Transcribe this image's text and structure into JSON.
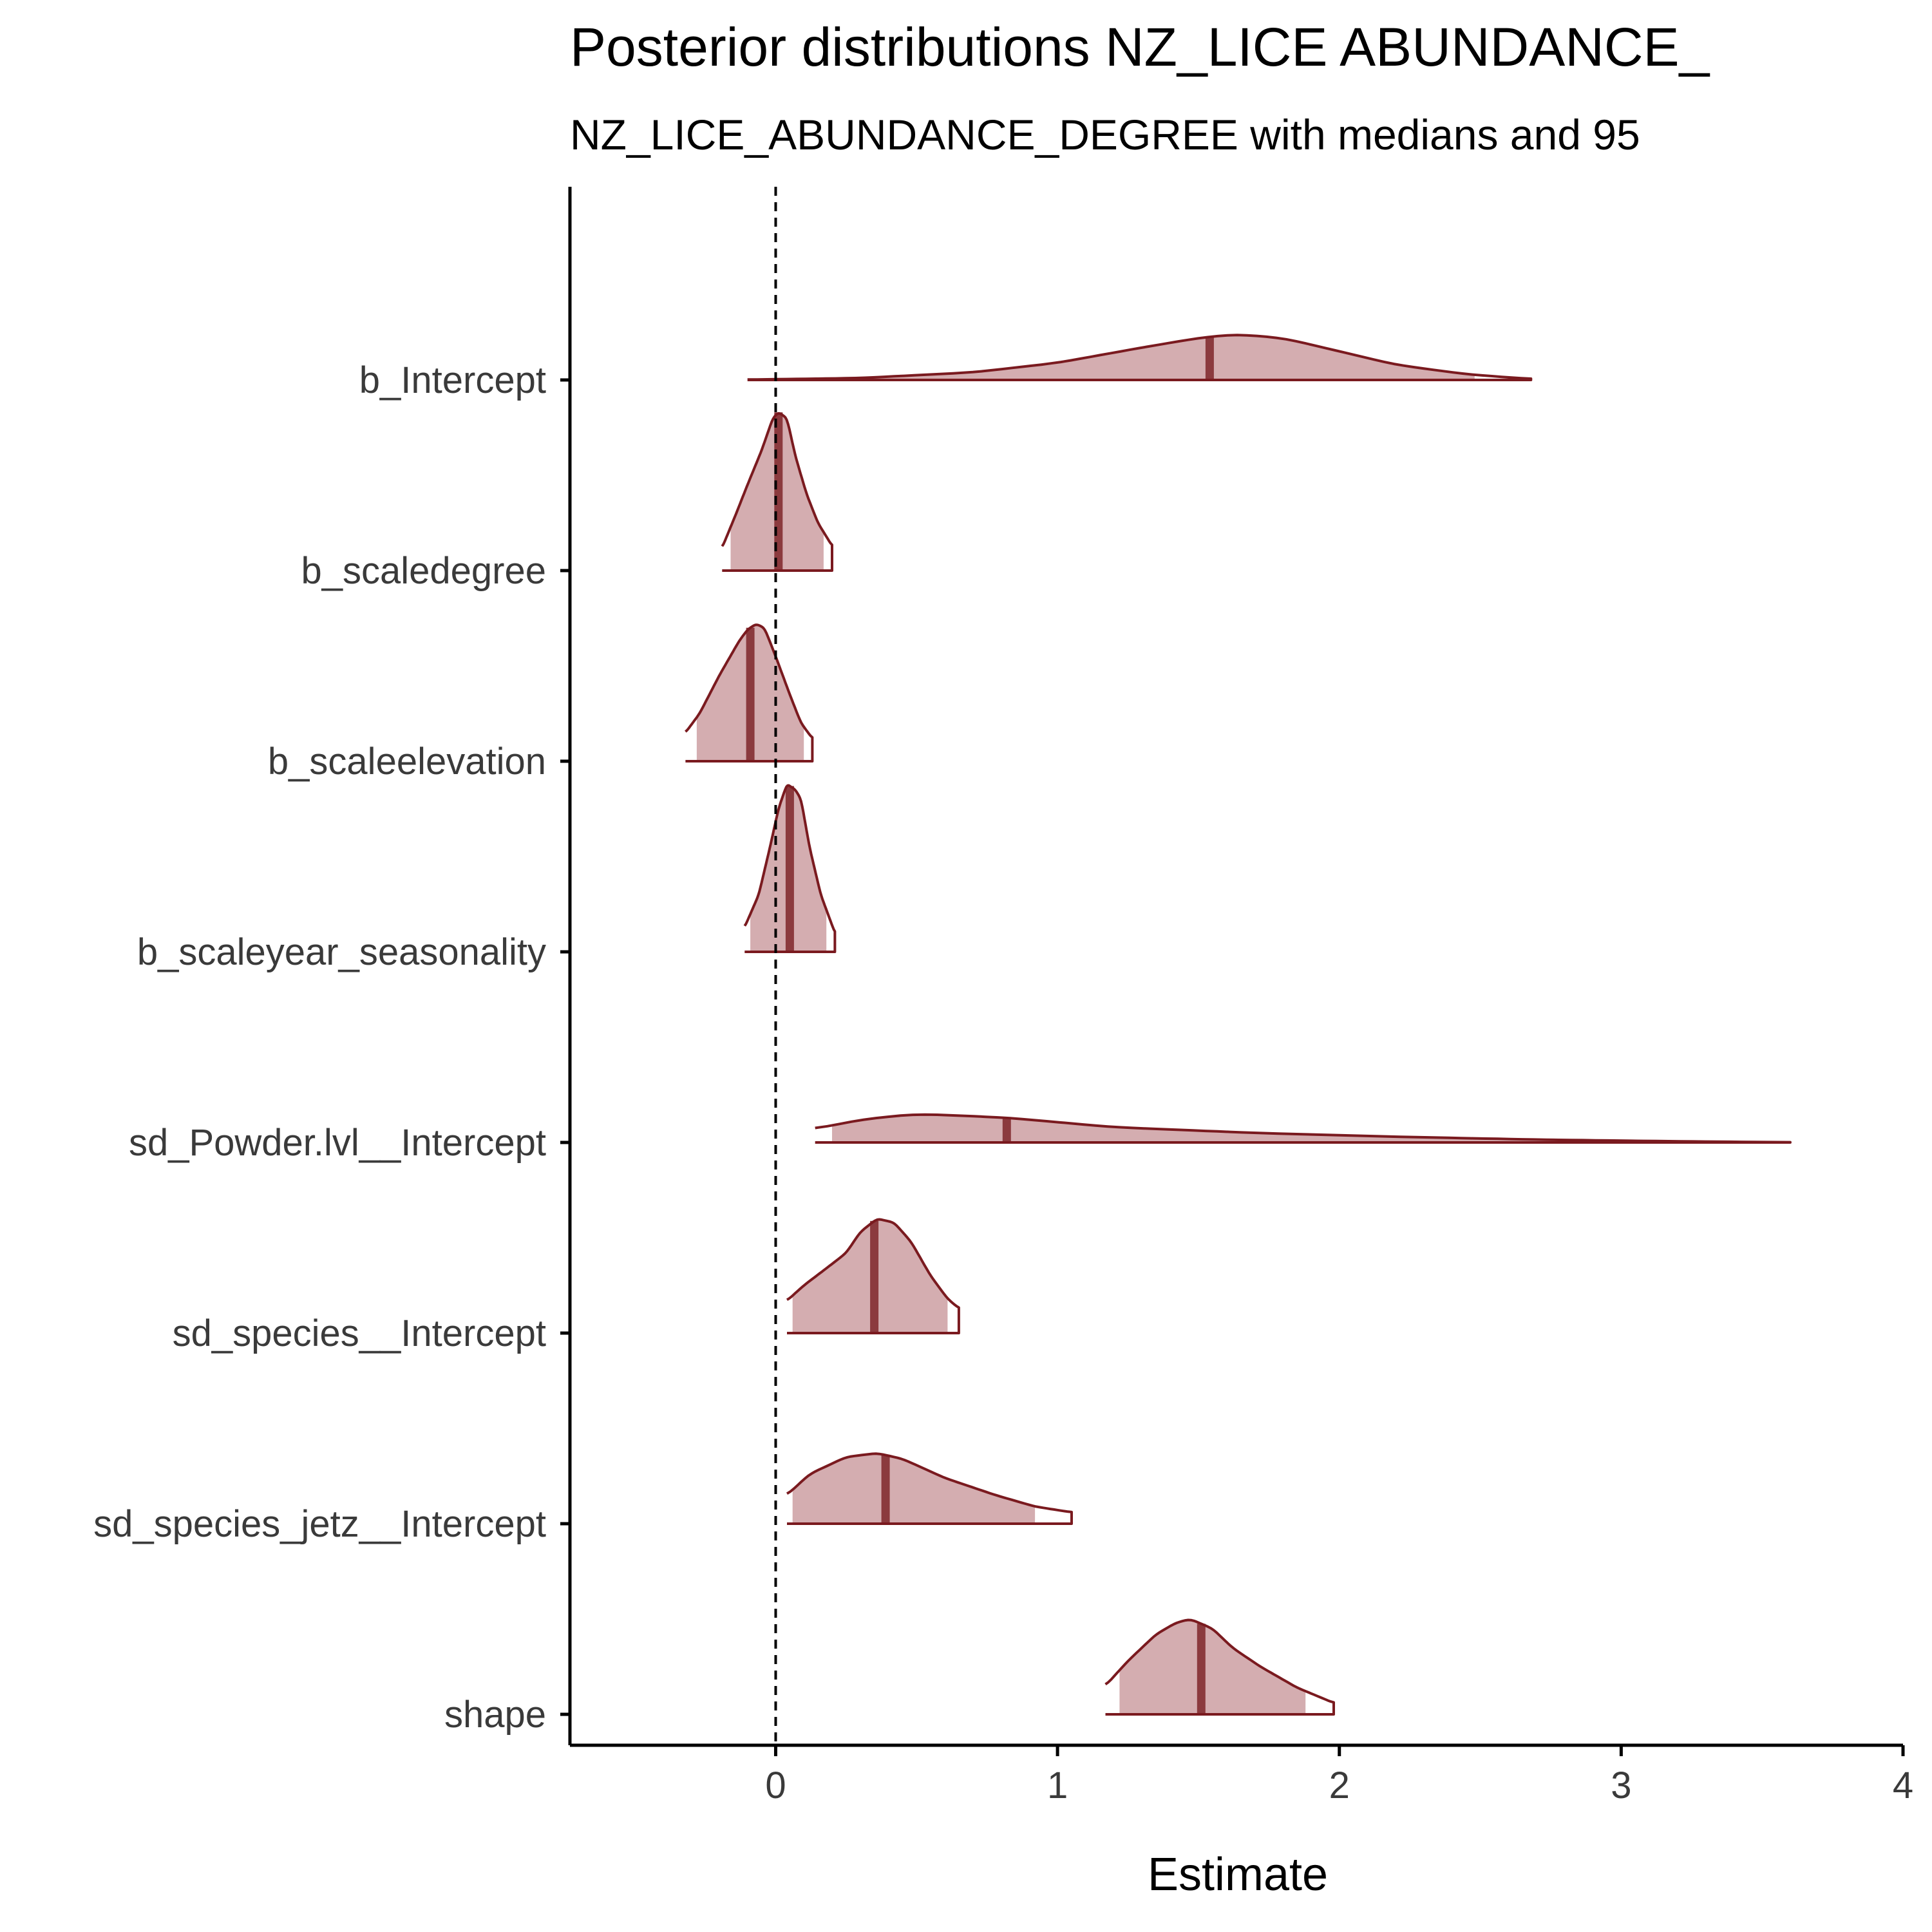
{
  "chart_data": {
    "type": "density-ridges",
    "title": "Posterior distributions NZ_LICE ABUNDANCE_",
    "subtitle": "NZ_LICE_ABUNDANCE_DEGREE with medians and 95",
    "xlabel": "Estimate",
    "ylabel": "",
    "xlim": [
      -0.73,
      4.0
    ],
    "x_ticks": [
      0,
      1,
      2,
      3,
      4
    ],
    "reference_line_x": 0,
    "grid": false,
    "legend": "none",
    "colors": {
      "line": "#7a1a1f",
      "fill": "#d4adb0",
      "median": "#8b3a3e"
    },
    "parameters": [
      {
        "name": "b_Intercept",
        "median": 1.54,
        "ci_low": -0.1,
        "ci_high": 2.48,
        "density": [
          [
            -0.1,
            0.002
          ],
          [
            0.3,
            0.01
          ],
          [
            0.7,
            0.04
          ],
          [
            1.0,
            0.09
          ],
          [
            1.3,
            0.17
          ],
          [
            1.5,
            0.22
          ],
          [
            1.63,
            0.24
          ],
          [
            1.8,
            0.22
          ],
          [
            2.0,
            0.15
          ],
          [
            2.2,
            0.08
          ],
          [
            2.45,
            0.03
          ],
          [
            2.68,
            0.005
          ]
        ]
      },
      {
        "name": "b_scaledegree",
        "median": 0.01,
        "ci_low": -0.16,
        "ci_high": 0.17,
        "density": [
          [
            -0.19,
            0.12
          ],
          [
            -0.14,
            0.3
          ],
          [
            -0.1,
            0.45
          ],
          [
            -0.05,
            0.63
          ],
          [
            -0.01,
            0.8
          ],
          [
            0.01,
            0.83
          ],
          [
            0.04,
            0.8
          ],
          [
            0.07,
            0.6
          ],
          [
            0.11,
            0.4
          ],
          [
            0.15,
            0.25
          ],
          [
            0.2,
            0.13
          ]
        ]
      },
      {
        "name": "b_scaleelevation",
        "median": -0.09,
        "ci_low": -0.28,
        "ci_high": 0.1,
        "density": [
          [
            -0.32,
            0.15
          ],
          [
            -0.27,
            0.25
          ],
          [
            -0.2,
            0.45
          ],
          [
            -0.13,
            0.63
          ],
          [
            -0.1,
            0.69
          ],
          [
            -0.07,
            0.72
          ],
          [
            -0.04,
            0.7
          ],
          [
            0.0,
            0.55
          ],
          [
            0.05,
            0.35
          ],
          [
            0.09,
            0.2
          ],
          [
            0.13,
            0.12
          ]
        ]
      },
      {
        "name": "b_scaleyear_seasonality",
        "median": 0.05,
        "ci_low": -0.09,
        "ci_high": 0.18,
        "density": [
          [
            -0.11,
            0.13
          ],
          [
            -0.06,
            0.3
          ],
          [
            -0.02,
            0.55
          ],
          [
            0.01,
            0.75
          ],
          [
            0.04,
            0.88
          ],
          [
            0.07,
            0.85
          ],
          [
            0.09,
            0.8
          ],
          [
            0.12,
            0.55
          ],
          [
            0.16,
            0.3
          ],
          [
            0.19,
            0.18
          ],
          [
            0.21,
            0.1
          ]
        ]
      },
      {
        "name": "sd_Powder.lvl__Intercept",
        "median": 0.82,
        "ci_low": 0.2,
        "ci_high": 3.6,
        "density": [
          [
            0.14,
            0.07
          ],
          [
            0.3,
            0.12
          ],
          [
            0.5,
            0.15
          ],
          [
            0.82,
            0.13
          ],
          [
            1.2,
            0.08
          ],
          [
            1.7,
            0.05
          ],
          [
            2.2,
            0.03
          ],
          [
            2.7,
            0.015
          ],
          [
            3.2,
            0.006
          ],
          [
            3.6,
            0.001
          ]
        ]
      },
      {
        "name": "sd_species__Intercept",
        "median": 0.35,
        "ci_low": 0.06,
        "ci_high": 0.61,
        "density": [
          [
            0.04,
            0.17
          ],
          [
            0.1,
            0.25
          ],
          [
            0.18,
            0.34
          ],
          [
            0.25,
            0.42
          ],
          [
            0.3,
            0.53
          ],
          [
            0.36,
            0.6
          ],
          [
            0.42,
            0.58
          ],
          [
            0.48,
            0.48
          ],
          [
            0.55,
            0.3
          ],
          [
            0.61,
            0.18
          ],
          [
            0.65,
            0.13
          ]
        ]
      },
      {
        "name": "sd_species_jetz__Intercept",
        "median": 0.39,
        "ci_low": 0.06,
        "ci_high": 0.92,
        "density": [
          [
            0.04,
            0.15
          ],
          [
            0.12,
            0.26
          ],
          [
            0.25,
            0.35
          ],
          [
            0.36,
            0.37
          ],
          [
            0.45,
            0.34
          ],
          [
            0.6,
            0.24
          ],
          [
            0.78,
            0.15
          ],
          [
            0.92,
            0.09
          ],
          [
            1.05,
            0.06
          ]
        ]
      },
      {
        "name": "shape",
        "median": 1.51,
        "ci_low": 1.22,
        "ci_high": 1.88,
        "density": [
          [
            1.17,
            0.15
          ],
          [
            1.25,
            0.28
          ],
          [
            1.35,
            0.42
          ],
          [
            1.42,
            0.48
          ],
          [
            1.47,
            0.5
          ],
          [
            1.55,
            0.45
          ],
          [
            1.62,
            0.35
          ],
          [
            1.72,
            0.25
          ],
          [
            1.85,
            0.14
          ],
          [
            1.98,
            0.06
          ]
        ]
      }
    ]
  }
}
